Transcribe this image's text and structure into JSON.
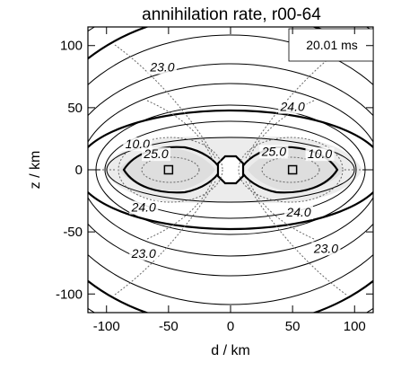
{
  "chart_data": {
    "type": "contour",
    "title": "annihilation rate, r00-64",
    "xlabel": "d / km",
    "ylabel": "z / km",
    "xlim": [
      -115,
      115
    ],
    "ylim": [
      -115,
      115
    ],
    "x_ticks": [
      -100,
      -50,
      0,
      50,
      100
    ],
    "y_ticks": [
      -100,
      -50,
      0,
      50,
      100
    ],
    "time_annotation": "20.01 ms",
    "contour_labels": [
      {
        "text": "23.0",
        "x": -55,
        "y": 80
      },
      {
        "text": "24.0",
        "x": 50,
        "y": 48
      },
      {
        "text": "10.0",
        "x": -75,
        "y": 18
      },
      {
        "text": "25.0",
        "x": -60,
        "y": 10
      },
      {
        "text": "25.0",
        "x": 35,
        "y": 12
      },
      {
        "text": "10.0",
        "x": 72,
        "y": 10
      },
      {
        "text": "24.0",
        "x": -70,
        "y": -33
      },
      {
        "text": "24.0",
        "x": 55,
        "y": -37
      },
      {
        "text": "23.0",
        "x": -70,
        "y": -70
      },
      {
        "text": "23.0",
        "x": 77,
        "y": -66
      }
    ],
    "hotspots": [
      {
        "x": -50,
        "z": 0
      },
      {
        "x": 50,
        "z": 0
      }
    ],
    "grid": false
  }
}
